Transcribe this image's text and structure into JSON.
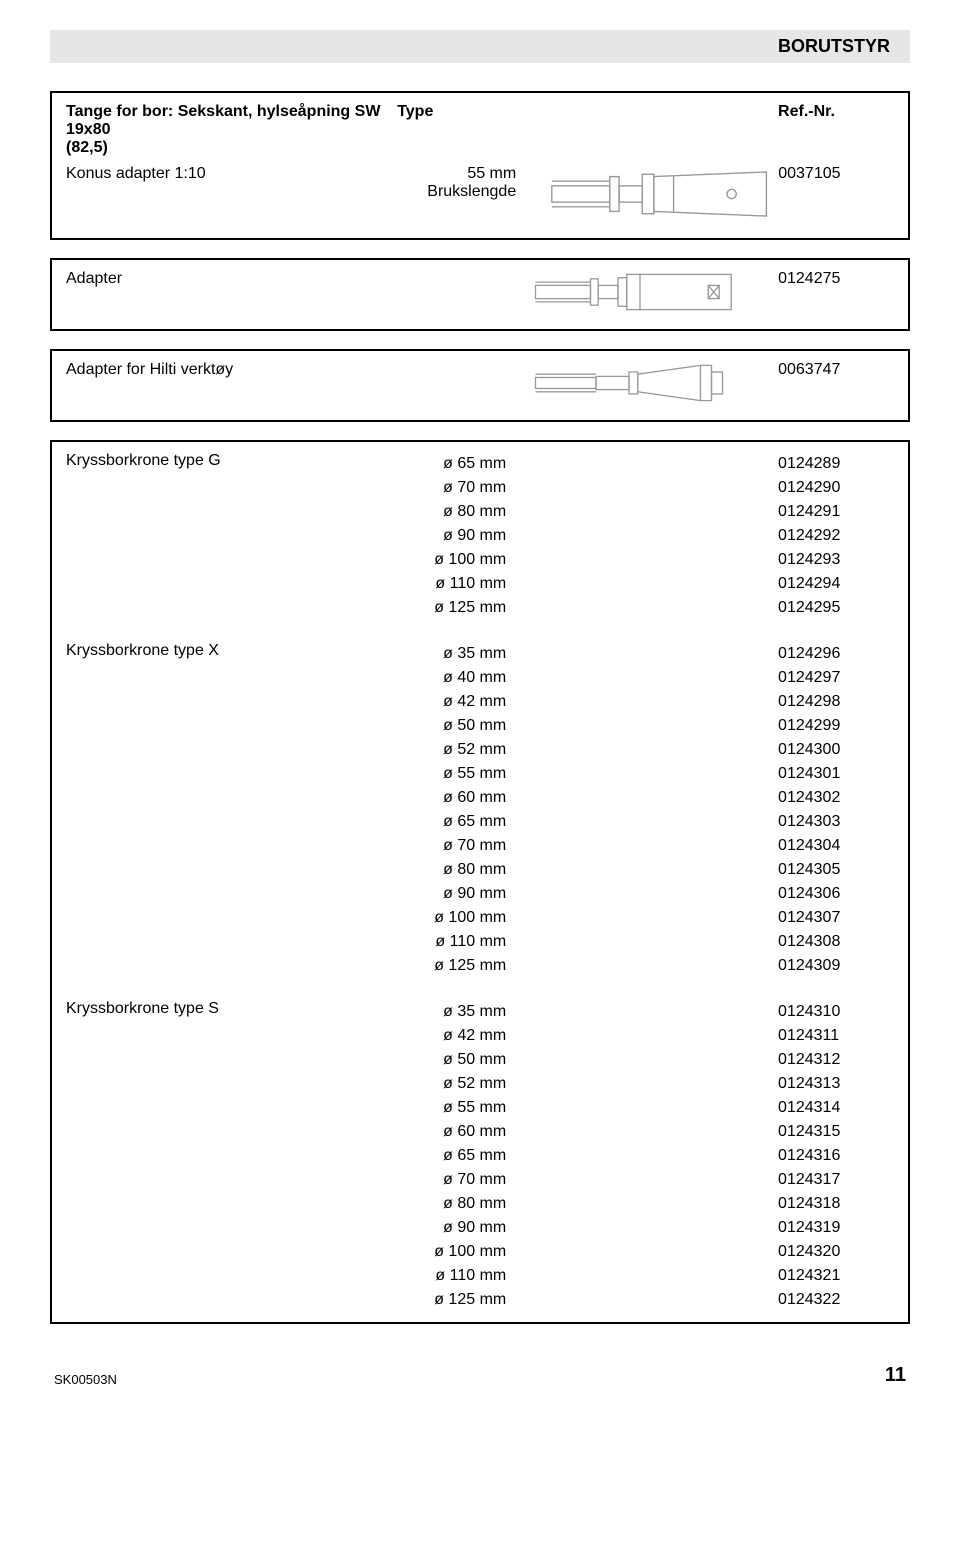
{
  "header": {
    "title": "BORUTSTYR"
  },
  "block1": {
    "title_line1": "Tange for bor: Sekskant, hylseåpning SW 19x80",
    "title_line2": "(82,5)",
    "type_label": "Type",
    "ref_label": "Ref.-Nr.",
    "item_name": "Konus adapter 1:10",
    "item_spec": "55 mm Brukslengde",
    "item_ref": "0037105"
  },
  "block2": {
    "name": "Adapter",
    "ref": "0124275"
  },
  "block3": {
    "name": "Adapter for Hilti verktøy",
    "ref": "0063747"
  },
  "block4": {
    "groups": [
      {
        "name": "Kryssborkrone type G",
        "rows": [
          {
            "size": "ø 65 mm",
            "ref": "0124289"
          },
          {
            "size": "ø 70 mm",
            "ref": "0124290"
          },
          {
            "size": "ø 80 mm",
            "ref": "0124291"
          },
          {
            "size": "ø 90 mm",
            "ref": "0124292"
          },
          {
            "size": "ø 100 mm",
            "ref": "0124293"
          },
          {
            "size": "ø 110 mm",
            "ref": "0124294"
          },
          {
            "size": "ø 125 mm",
            "ref": "0124295"
          }
        ]
      },
      {
        "name": "Kryssborkrone type X",
        "rows": [
          {
            "size": "ø 35 mm",
            "ref": "0124296"
          },
          {
            "size": "ø 40 mm",
            "ref": "0124297"
          },
          {
            "size": "ø 42 mm",
            "ref": "0124298"
          },
          {
            "size": "ø 50 mm",
            "ref": "0124299"
          },
          {
            "size": "ø 52 mm",
            "ref": "0124300"
          },
          {
            "size": "ø 55 mm",
            "ref": "0124301"
          },
          {
            "size": "ø 60 mm",
            "ref": "0124302"
          },
          {
            "size": "ø 65 mm",
            "ref": "0124303"
          },
          {
            "size": "ø 70 mm",
            "ref": "0124304"
          },
          {
            "size": "ø 80 mm",
            "ref": "0124305"
          },
          {
            "size": "ø 90 mm",
            "ref": "0124306"
          },
          {
            "size": "ø 100 mm",
            "ref": "0124307"
          },
          {
            "size": "ø 110 mm",
            "ref": "0124308"
          },
          {
            "size": "ø 125 mm",
            "ref": "0124309"
          }
        ]
      },
      {
        "name": "Kryssborkrone type S",
        "rows": [
          {
            "size": "ø 35 mm",
            "ref": "0124310"
          },
          {
            "size": "ø 42 mm",
            "ref": "0124311"
          },
          {
            "size": "ø 50 mm",
            "ref": "0124312"
          },
          {
            "size": "ø 52 mm",
            "ref": "0124313"
          },
          {
            "size": "ø 55 mm",
            "ref": "0124314"
          },
          {
            "size": "ø 60 mm",
            "ref": "0124315"
          },
          {
            "size": "ø 65 mm",
            "ref": "0124316"
          },
          {
            "size": "ø 70 mm",
            "ref": "0124317"
          },
          {
            "size": "ø 80 mm",
            "ref": "0124318"
          },
          {
            "size": "ø 90 mm",
            "ref": "0124319"
          },
          {
            "size": "ø 100 mm",
            "ref": "0124320"
          },
          {
            "size": "ø 110 mm",
            "ref": "0124321"
          },
          {
            "size": "ø 125 mm",
            "ref": "0124322"
          }
        ]
      }
    ]
  },
  "footer": {
    "code": "SK00503N",
    "page": "11"
  }
}
